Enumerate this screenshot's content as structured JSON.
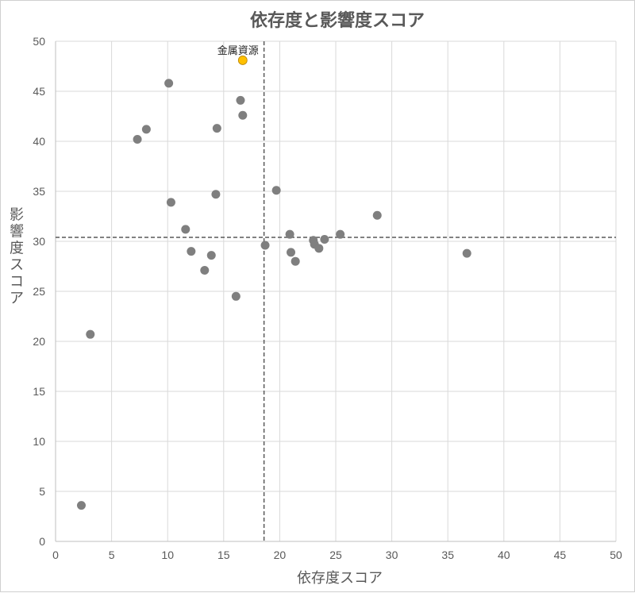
{
  "chart_data": {
    "type": "scatter",
    "title": "依存度と影響度スコア",
    "xlabel": "依存度スコア",
    "ylabel": "影響度スコア",
    "xlim": [
      0,
      50
    ],
    "ylim": [
      0,
      50
    ],
    "xticks": [
      0,
      5,
      10,
      15,
      20,
      25,
      30,
      35,
      40,
      45,
      50
    ],
    "yticks": [
      0,
      5,
      10,
      15,
      20,
      25,
      30,
      35,
      40,
      45,
      50
    ],
    "grid": true,
    "legend": "none",
    "reference_lines": {
      "x": 18.6,
      "y": 30.4
    },
    "points": [
      {
        "x": 10.1,
        "y": 45.8
      },
      {
        "x": 16.5,
        "y": 44.1
      },
      {
        "x": 16.7,
        "y": 42.6
      },
      {
        "x": 8.1,
        "y": 41.2
      },
      {
        "x": 14.4,
        "y": 41.3
      },
      {
        "x": 7.3,
        "y": 40.2
      },
      {
        "x": 19.7,
        "y": 35.1
      },
      {
        "x": 14.3,
        "y": 34.7
      },
      {
        "x": 10.3,
        "y": 33.9
      },
      {
        "x": 28.7,
        "y": 32.6
      },
      {
        "x": 11.6,
        "y": 31.2
      },
      {
        "x": 20.9,
        "y": 30.7
      },
      {
        "x": 25.4,
        "y": 30.7
      },
      {
        "x": 23.0,
        "y": 30.1
      },
      {
        "x": 24.0,
        "y": 30.2
      },
      {
        "x": 23.1,
        "y": 29.7
      },
      {
        "x": 18.7,
        "y": 29.6
      },
      {
        "x": 23.5,
        "y": 29.3
      },
      {
        "x": 12.1,
        "y": 29.0
      },
      {
        "x": 21.0,
        "y": 28.9
      },
      {
        "x": 36.7,
        "y": 28.8
      },
      {
        "x": 13.9,
        "y": 28.6
      },
      {
        "x": 21.4,
        "y": 28.0
      },
      {
        "x": 13.3,
        "y": 27.1
      },
      {
        "x": 16.1,
        "y": 24.5
      },
      {
        "x": 3.1,
        "y": 20.7
      },
      {
        "x": 2.3,
        "y": 3.6
      }
    ],
    "highlight": {
      "label": "金属資源",
      "x": 16.7,
      "y": 48.1
    },
    "colors": {
      "point": "#7f7f7f",
      "highlight": "#ffc000",
      "highlight_stroke": "#b8860b",
      "grid": "#d9d9d9",
      "axis": "#bfbfbf",
      "reference": "#595959"
    }
  }
}
